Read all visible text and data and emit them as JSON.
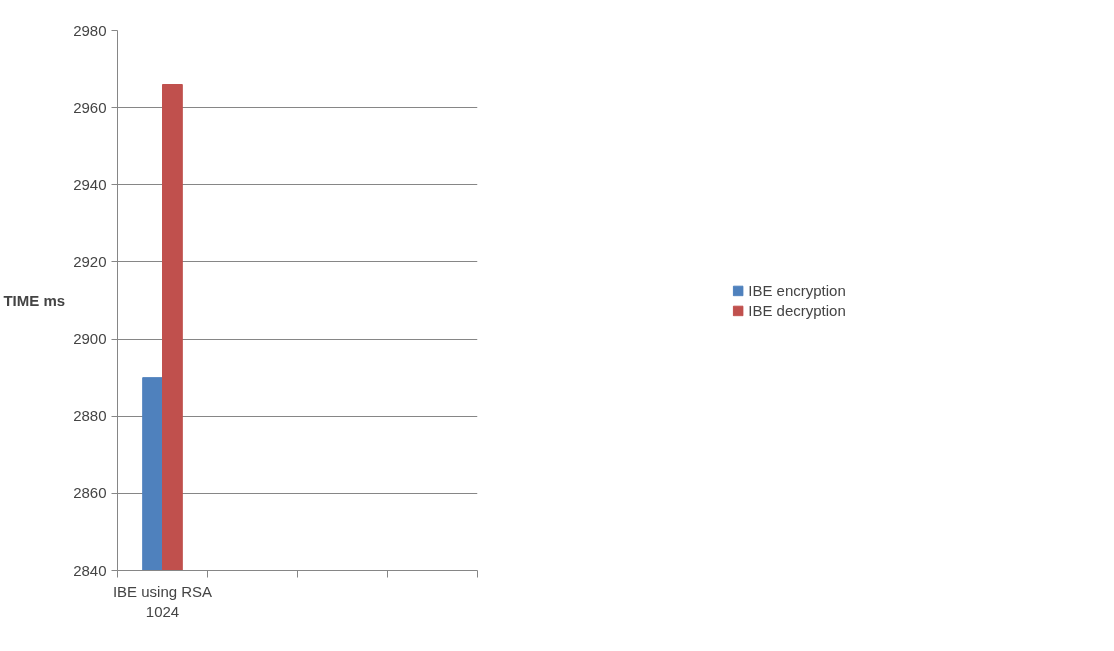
{
  "chart_data": {
    "type": "bar",
    "ylabel": "TIME ms",
    "categories": [
      "IBE using RSA\n1024",
      null,
      null,
      null
    ],
    "series": [
      {
        "name": "IBE encryption",
        "color": "#4f81bd",
        "values": [
          2890,
          null,
          null,
          null
        ]
      },
      {
        "name": "IBE decryption",
        "color": "#c0504d",
        "values": [
          2966,
          null,
          null,
          null
        ]
      }
    ],
    "ylim": [
      2840,
      2980
    ],
    "yticks": [
      2840,
      2860,
      2880,
      2900,
      2920,
      2940,
      2960,
      2980
    ],
    "grid": "y",
    "legend": "right"
  }
}
